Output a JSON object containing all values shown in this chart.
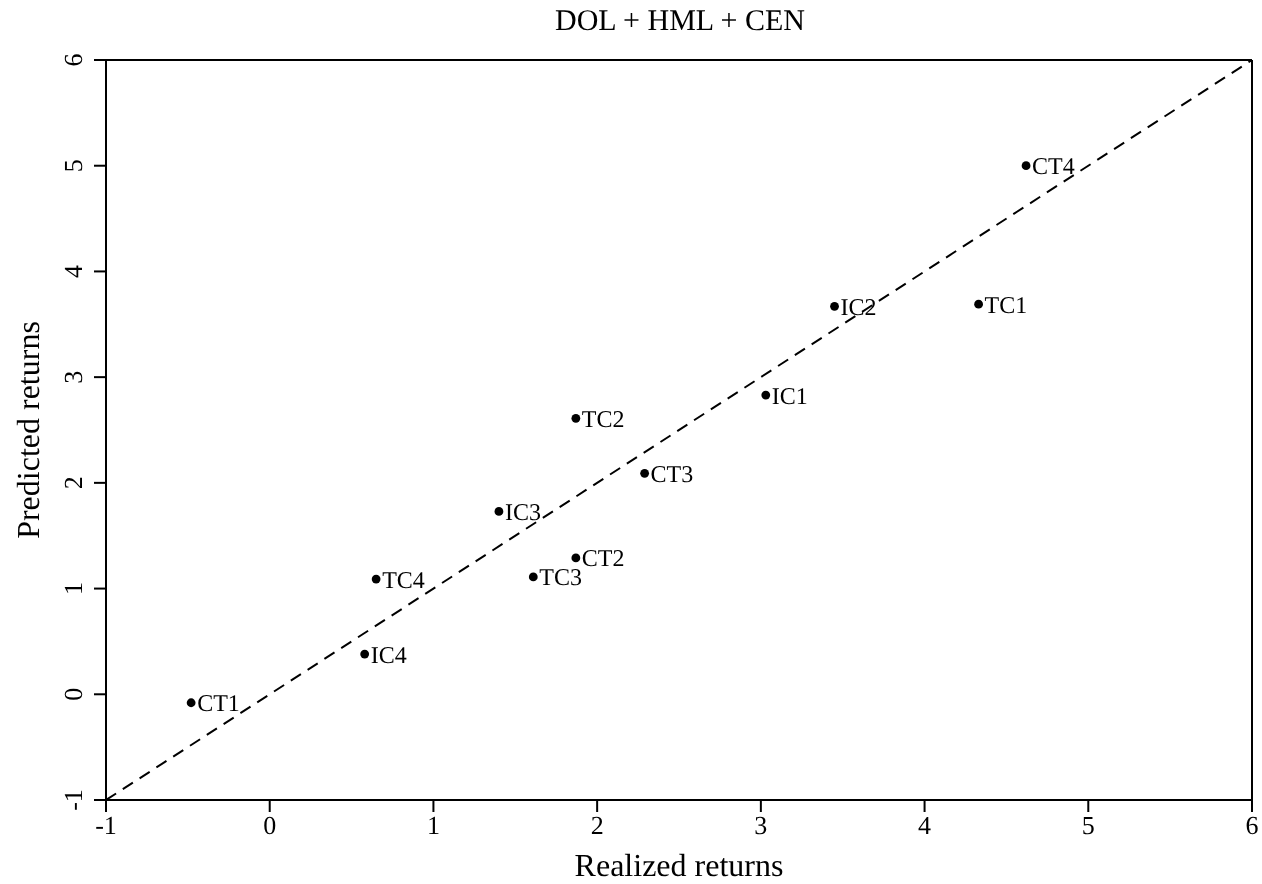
{
  "chart_data": {
    "type": "scatter",
    "title": "DOL + HML + CEN",
    "xlabel": "Realized returns",
    "ylabel": "Predicted returns",
    "series": [
      {
        "color": "#000000",
        "x": [
          4.62,
          3.45,
          4.33,
          3.03,
          1.87,
          2.29,
          1.4,
          1.87,
          1.61,
          0.65,
          0.58,
          -0.48
        ],
        "values": [
          5.0,
          3.67,
          3.69,
          2.83,
          2.61,
          2.09,
          1.73,
          1.29,
          1.11,
          1.09,
          0.38,
          -0.08
        ]
      },
      {
        "type": "line",
        "color": "#000000",
        "line_style": "dashed",
        "marker": "none",
        "x": [
          -1,
          6
        ],
        "values": [
          -1,
          6
        ]
      }
    ],
    "annotations": [
      {
        "text": "CT4",
        "x": 4.62,
        "y": 5.0
      },
      {
        "text": "IC2",
        "x": 3.45,
        "y": 3.67
      },
      {
        "text": "TC1",
        "x": 4.33,
        "y": 3.69
      },
      {
        "text": "IC1",
        "x": 3.03,
        "y": 2.83
      },
      {
        "text": "TC2",
        "x": 1.87,
        "y": 2.61
      },
      {
        "text": "CT3",
        "x": 2.29,
        "y": 2.09
      },
      {
        "text": "IC3",
        "x": 1.4,
        "y": 1.73
      },
      {
        "text": "CT2",
        "x": 1.87,
        "y": 1.29
      },
      {
        "text": "TC3",
        "x": 1.61,
        "y": 1.11
      },
      {
        "text": "TC4",
        "x": 0.65,
        "y": 1.09
      },
      {
        "text": "IC4",
        "x": 0.58,
        "y": 0.38
      },
      {
        "text": "CT1",
        "x": -0.48,
        "y": -0.08
      }
    ],
    "marker": "circle",
    "grid": false,
    "legend": false,
    "xlim": [
      -1,
      6
    ],
    "ylim": [
      -1,
      6
    ],
    "xticks": [
      -1,
      0,
      1,
      2,
      3,
      4,
      5,
      6
    ],
    "yticks": [
      -1,
      0,
      1,
      2,
      3,
      4,
      5,
      6
    ]
  }
}
